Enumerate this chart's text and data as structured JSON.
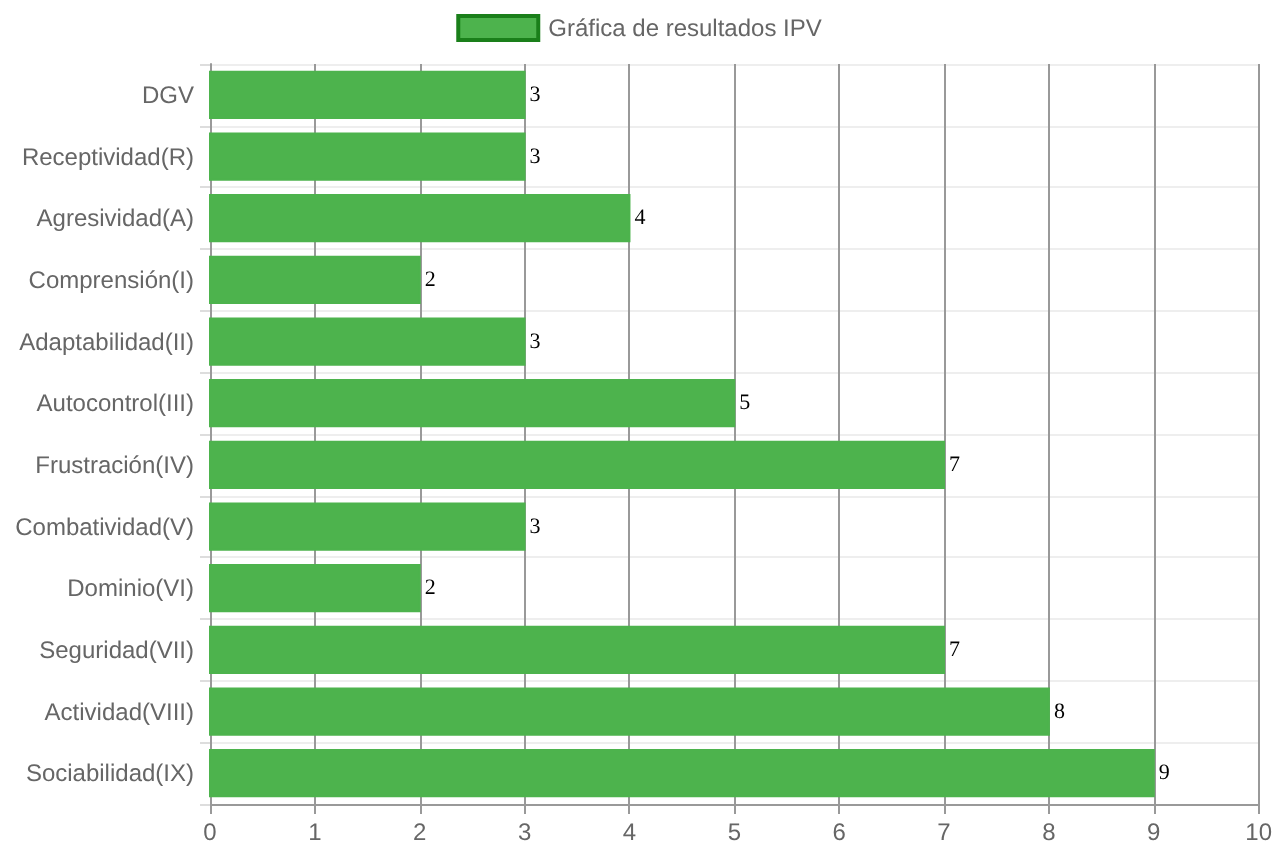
{
  "chart_data": {
    "type": "bar",
    "orientation": "horizontal",
    "categories": [
      "DGV",
      "Receptividad(R)",
      "Agresividad(A)",
      "Comprensión(I)",
      "Adaptabilidad(II)",
      "Autocontrol(III)",
      "Frustración(IV)",
      "Combatividad(V)",
      "Dominio(VI)",
      "Seguridad(VII)",
      "Actividad(VIII)",
      "Sociabilidad(IX)"
    ],
    "series": [
      {
        "name": "Gráfica de resultados IPV",
        "color": "#4db34d",
        "values": [
          3,
          3,
          4,
          2,
          3,
          5,
          7,
          3,
          2,
          7,
          8,
          9
        ]
      }
    ],
    "xlim": [
      0,
      10
    ],
    "xticks": [
      0,
      1,
      2,
      3,
      4,
      5,
      6,
      7,
      8,
      9,
      10
    ],
    "grid": true,
    "legend": "top",
    "data_labels": true
  }
}
